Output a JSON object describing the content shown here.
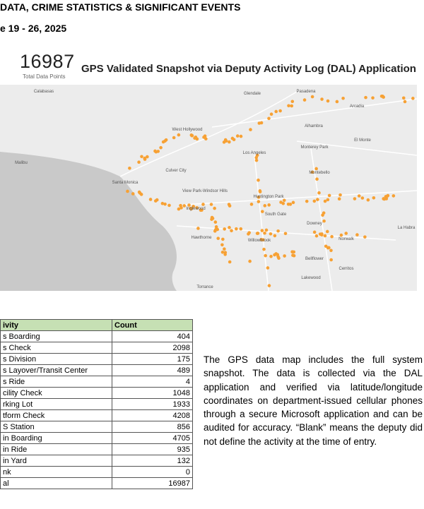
{
  "header": {
    "title": "DATA, CRIME STATISTICS & SIGNIFICANT EVENTS",
    "date": "e 19 - 26, 2025"
  },
  "summary": {
    "total": "16987",
    "total_label": "Total Data Points",
    "map_title": "GPS Validated Snapshot via Deputy Activity Log (DAL) Application"
  },
  "map": {
    "labels": [
      "Calabasas",
      "Malibu",
      "Glendale",
      "Pasadena",
      "Arcadia",
      "Alhambra",
      "West Hollywood",
      "Los Angeles",
      "Monterey Park",
      "El Monte",
      "Culver City",
      "Santa Monica",
      "Montebello",
      "View Park-Windsor Hills",
      "Huntington Park",
      "Inglewood",
      "South Gate",
      "Downey",
      "Hawthorne",
      "Willowbrook",
      "Norwalk",
      "Bellflower",
      "Lakewood",
      "Torrance",
      "Cerritos",
      "La Habra"
    ]
  },
  "table": {
    "header": [
      "ivity",
      "Count"
    ],
    "rows": [
      [
        "s Boarding",
        "404"
      ],
      [
        "s Check",
        "2098"
      ],
      [
        "s Division",
        "175"
      ],
      [
        "s Layover/Transit Center",
        "489"
      ],
      [
        "s Ride",
        "4"
      ],
      [
        "cility Check",
        "1048"
      ],
      [
        "rking Lot",
        "1933"
      ],
      [
        "tform Check",
        "4208"
      ],
      [
        "S Station",
        "856"
      ],
      [
        "in Boarding",
        "4705"
      ],
      [
        "in Ride",
        "935"
      ],
      [
        "in Yard",
        "132"
      ],
      [
        "nk",
        "0"
      ],
      [
        "al",
        "16987"
      ]
    ]
  },
  "paragraph": "The GPS data map includes the full system snapshot. The data is collected via the DAL application and verified via latitude/longitude coordinates on department-issued cellular phones through a secure Microsoft application and can be audited for accuracy. “Blank” means the deputy did not define the activity at the time of entry."
}
